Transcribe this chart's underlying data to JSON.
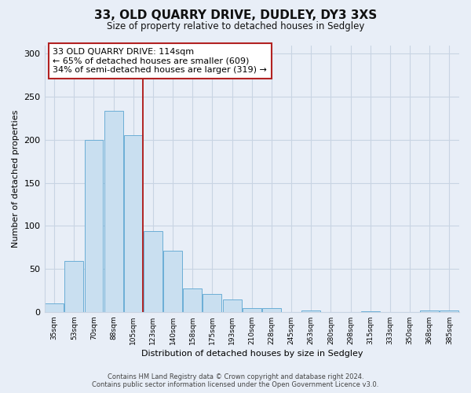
{
  "title": "33, OLD QUARRY DRIVE, DUDLEY, DY3 3XS",
  "subtitle": "Size of property relative to detached houses in Sedgley",
  "xlabel": "Distribution of detached houses by size in Sedgley",
  "ylabel": "Number of detached properties",
  "bar_labels": [
    "35sqm",
    "53sqm",
    "70sqm",
    "88sqm",
    "105sqm",
    "123sqm",
    "140sqm",
    "158sqm",
    "175sqm",
    "193sqm",
    "210sqm",
    "228sqm",
    "245sqm",
    "263sqm",
    "280sqm",
    "298sqm",
    "315sqm",
    "333sqm",
    "350sqm",
    "368sqm",
    "385sqm"
  ],
  "bar_values": [
    10,
    59,
    200,
    234,
    205,
    94,
    71,
    27,
    21,
    14,
    4,
    4,
    0,
    2,
    0,
    0,
    1,
    0,
    0,
    2,
    2
  ],
  "bar_color": "#c9dff0",
  "bar_edge_color": "#6baed6",
  "property_line_x": 4.5,
  "property_line_color": "#b22222",
  "annotation_title": "33 OLD QUARRY DRIVE: 114sqm",
  "annotation_line1": "← 65% of detached houses are smaller (609)",
  "annotation_line2": "34% of semi-detached houses are larger (319) →",
  "annotation_box_color": "#ffffff",
  "annotation_box_edge": "#b22222",
  "ylim": [
    0,
    310
  ],
  "yticks": [
    0,
    50,
    100,
    150,
    200,
    250,
    300
  ],
  "footer_line1": "Contains HM Land Registry data © Crown copyright and database right 2024.",
  "footer_line2": "Contains public sector information licensed under the Open Government Licence v3.0.",
  "background_color": "#e8eef7",
  "plot_background_color": "#e8eef7"
}
